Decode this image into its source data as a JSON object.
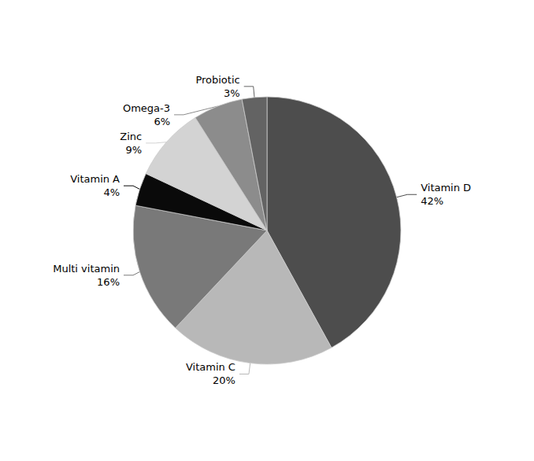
{
  "chart_data": {
    "type": "pie",
    "categories": [
      "Vitamin D",
      "Vitamin C",
      "Multi vitamin",
      "Vitamin A",
      "Zinc",
      "Omega-3",
      "Probiotic"
    ],
    "values": [
      42,
      20,
      16,
      4,
      9,
      6,
      3
    ],
    "value_labels": [
      "42%",
      "20%",
      "16%",
      "4%",
      "9%",
      "6%",
      "3%"
    ],
    "colors": [
      "#4d4d4d",
      "#b8b8b8",
      "#797979",
      "#0a0a0a",
      "#d3d3d3",
      "#8c8c8c",
      "#636363"
    ],
    "data_labels": true,
    "legend": false
  }
}
